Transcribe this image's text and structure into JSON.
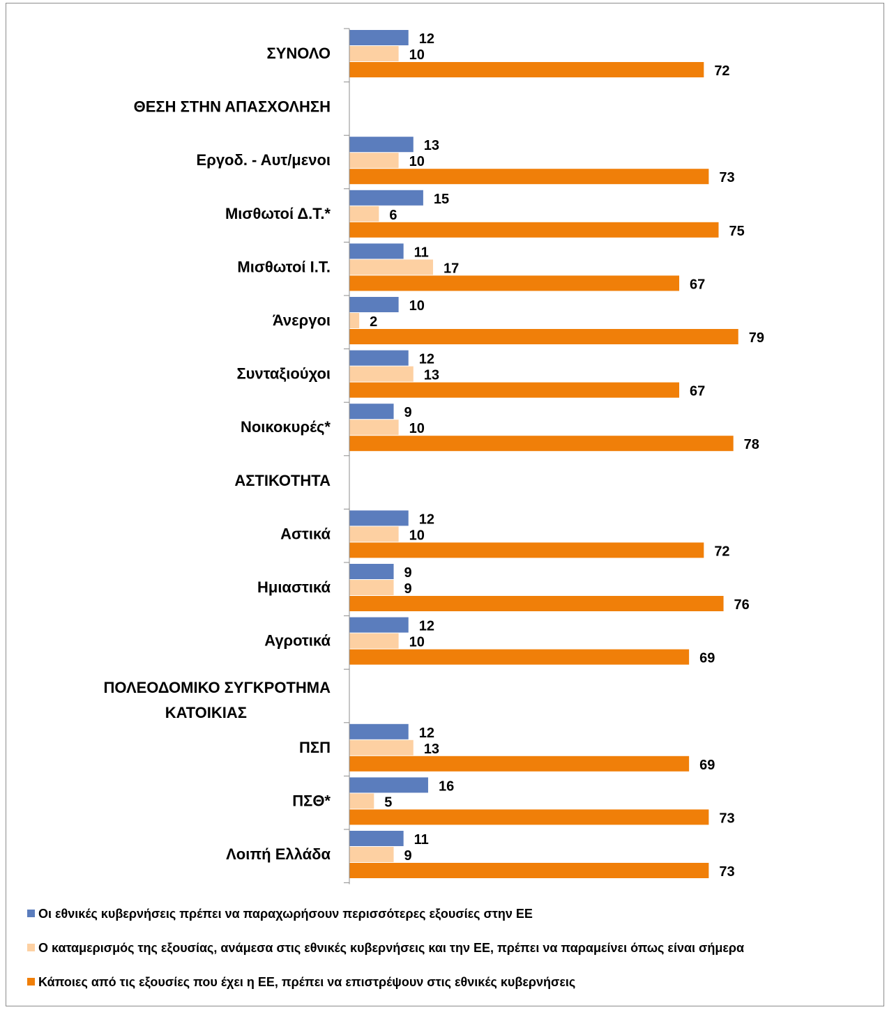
{
  "chart_data": {
    "type": "bar",
    "orientation": "horizontal",
    "categories": [
      "ΣΥΝΟΛΟ",
      "ΘΕΣΗ ΣΤΗΝ ΑΠΑΣΧΟΛΗΣΗ",
      "Εργοδ. - Αυτ/μενοι",
      "Μισθωτοί Δ.Τ.*",
      "Μισθωτοί Ι.Τ.",
      "Άνεργοι",
      "Συνταξιούχοι",
      "Νοικοκυρές*",
      "ΑΣΤΙΚΟΤΗΤΑ",
      "Αστικά",
      "Ημιαστικά",
      "Αγροτικά",
      "ΠΟΛΕΟΔΟΜΙΚΟ ΣΥΓΚΡΟΤΗΜΑ ΚΑΤΟΙΚΙΑΣ",
      "ΠΣΠ",
      "ΠΣΘ*",
      "Λοιπή Ελλάδα"
    ],
    "series": [
      {
        "name": "Οι εθνικές κυβερνήσεις πρέπει να παραχωρήσουν περισσότερες εξουσίες στην ΕΕ",
        "color": "#5b7dbd",
        "values": [
          12,
          null,
          13,
          15,
          11,
          10,
          12,
          9,
          null,
          12,
          9,
          12,
          null,
          12,
          16,
          11
        ]
      },
      {
        "name": "Ο καταμερισμός της εξουσίας, ανάμεσα στις εθνικές κυβερνήσεις και την ΕΕ, πρέπει να παραμείνει όπως είναι σήμερα",
        "color": "#fdd0a2",
        "values": [
          10,
          null,
          10,
          6,
          17,
          2,
          13,
          10,
          null,
          10,
          9,
          10,
          null,
          13,
          5,
          9
        ]
      },
      {
        "name": "Κάποιες από τις εξουσίες που έχει η ΕΕ, πρέπει να επιστρέψουν στις εθνικές κυβερνήσεις",
        "color": "#f07f09",
        "values": [
          72,
          null,
          73,
          75,
          67,
          79,
          67,
          78,
          null,
          72,
          76,
          69,
          null,
          69,
          73,
          73
        ]
      }
    ],
    "xlim": [
      0,
      100
    ],
    "grid": false,
    "legend_position": "bottom",
    "data_labels": true
  }
}
